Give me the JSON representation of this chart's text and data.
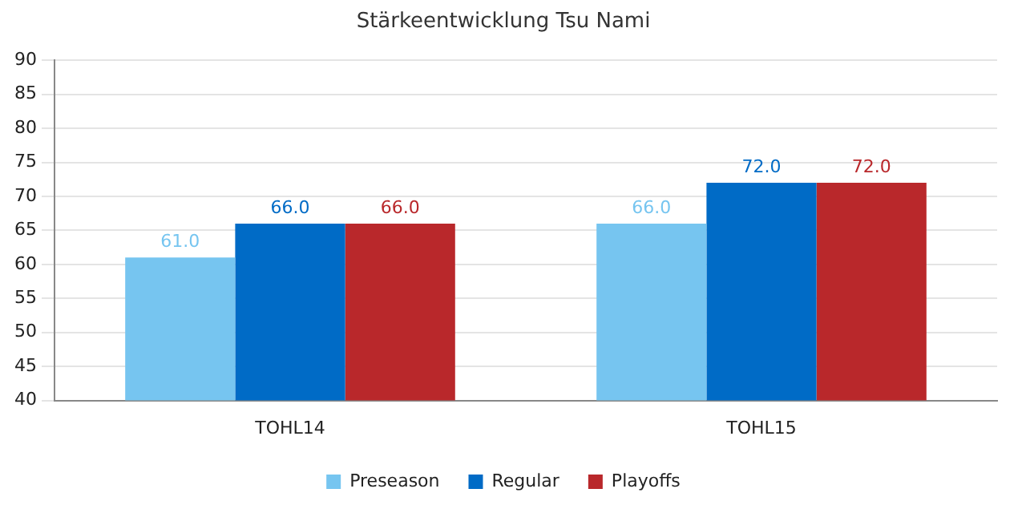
{
  "chart_data": {
    "type": "bar",
    "title": "Stärkeentwicklung Tsu Nami",
    "categories": [
      "TOHL14",
      "TOHL15"
    ],
    "series": [
      {
        "name": "Preseason",
        "color": "#76c5f0",
        "values": [
          61,
          66
        ],
        "value_labels": [
          "61.0",
          "66.0"
        ]
      },
      {
        "name": "Regular",
        "color": "#006bc6",
        "values": [
          66,
          72
        ],
        "value_labels": [
          "66.0",
          "72.0"
        ]
      },
      {
        "name": "Playoffs",
        "color": "#b9282b",
        "values": [
          66,
          72
        ],
        "value_labels": [
          "66.0",
          "72.0"
        ]
      }
    ],
    "ylim": [
      40,
      90
    ],
    "yticks": [
      40,
      45,
      50,
      55,
      60,
      65,
      70,
      75,
      80,
      85,
      90
    ],
    "grid": "y",
    "legend": "bottom"
  }
}
